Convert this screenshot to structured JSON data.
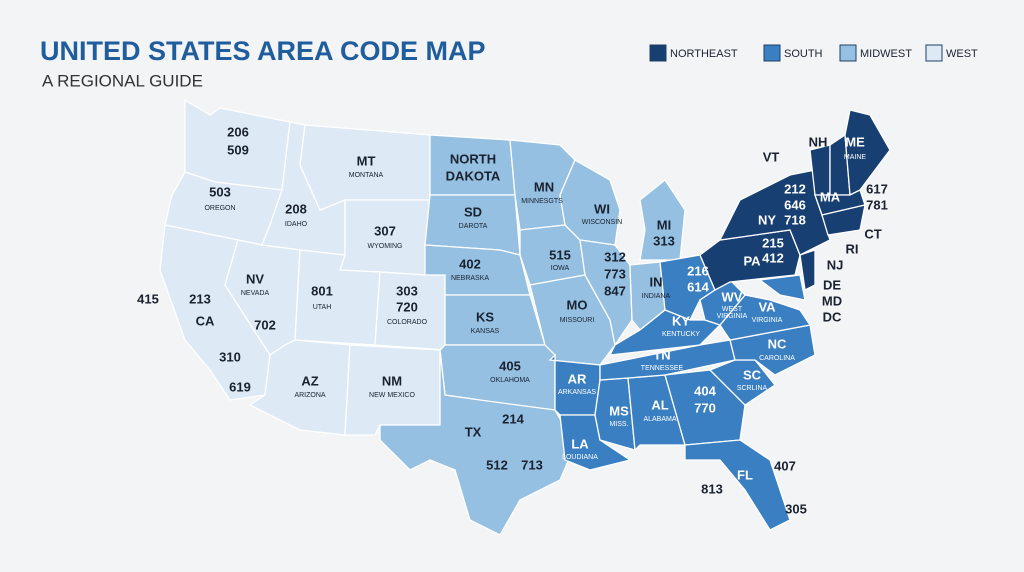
{
  "header": {
    "title": "UNITED STATES AREA CODE MAP",
    "subtitle": "A REGIONAL GUIDE"
  },
  "legend": [
    {
      "name": "NORTHEAST",
      "color": "#173f72"
    },
    {
      "name": "SOUTH",
      "color": "#3a7fc1"
    },
    {
      "name": "MIDWEST",
      "color": "#95c0e2"
    },
    {
      "name": "WEST",
      "color": "#dde9f5"
    }
  ],
  "states": [
    {
      "region": "WEST",
      "labels": [
        "206",
        "509"
      ]
    },
    {
      "region": "WEST",
      "labels": [
        "503",
        "OREGON"
      ]
    },
    {
      "region": "WEST",
      "labels": [
        "208",
        "IDAHO"
      ]
    },
    {
      "region": "WEST",
      "labels": [
        "MT",
        "MONTANA"
      ]
    },
    {
      "region": "WEST",
      "labels": [
        "307",
        "WYOMING"
      ]
    },
    {
      "region": "WEST",
      "labels": [
        "213",
        "CA",
        "310",
        "415",
        "619"
      ]
    },
    {
      "region": "WEST",
      "labels": [
        "NV",
        "NEVADA",
        "702"
      ]
    },
    {
      "region": "WEST",
      "labels": [
        "801",
        "UTAH"
      ]
    },
    {
      "region": "WEST",
      "labels": [
        "303",
        "720",
        "COLORADO"
      ]
    },
    {
      "region": "WEST",
      "labels": [
        "AZ",
        "ARIZONA"
      ]
    },
    {
      "region": "WEST",
      "labels": [
        "NM",
        "NEW MEXICO"
      ]
    },
    {
      "region": "MIDWEST",
      "labels": [
        "NORTH",
        "DAKOTA"
      ]
    },
    {
      "region": "MIDWEST",
      "labels": [
        "SD",
        "DAROTA"
      ]
    },
    {
      "region": "MIDWEST",
      "labels": [
        "402",
        "NEBRASKA"
      ]
    },
    {
      "region": "MIDWEST",
      "labels": [
        "KS",
        "KANSAS"
      ]
    },
    {
      "region": "MIDWEST",
      "labels": [
        "MN",
        "MINNESGTS"
      ]
    },
    {
      "region": "MIDWEST",
      "labels": [
        "515",
        "IOWA"
      ]
    },
    {
      "region": "MIDWEST",
      "labels": [
        "MO",
        "MISSOURI"
      ]
    },
    {
      "region": "MIDWEST",
      "labels": [
        "WI",
        "WISCONSIN"
      ]
    },
    {
      "region": "MIDWEST",
      "labels": [
        "312",
        "773",
        "847"
      ]
    },
    {
      "region": "MIDWEST",
      "labels": [
        "MI",
        "313"
      ]
    },
    {
      "region": "MIDWEST",
      "labels": [
        "IN",
        "INDIANA"
      ]
    },
    {
      "region": "SOUTH",
      "labels": [
        "216",
        "614"
      ]
    },
    {
      "region": "MIDWEST",
      "labels": [
        "405",
        "OKLAHOMA"
      ]
    },
    {
      "region": "MIDWEST",
      "labels": [
        "TX",
        "214",
        "512",
        "713"
      ]
    },
    {
      "region": "SOUTH",
      "labels": [
        "AR",
        "ARKANSAS"
      ]
    },
    {
      "region": "SOUTH",
      "labels": [
        "LA",
        "LOUDIANA"
      ]
    },
    {
      "region": "SOUTH",
      "labels": [
        "MS",
        "MISS."
      ]
    },
    {
      "region": "SOUTH",
      "labels": [
        "AL",
        "ALABAMA"
      ]
    },
    {
      "region": "SOUTH",
      "labels": [
        "TN",
        "TENNESSEE"
      ]
    },
    {
      "region": "SOUTH",
      "labels": [
        "KY",
        "KENTUCKY"
      ]
    },
    {
      "region": "SOUTH",
      "labels": [
        "404",
        "770"
      ]
    },
    {
      "region": "SOUTH",
      "labels": [
        "FL",
        "407",
        "813",
        "305"
      ]
    },
    {
      "region": "SOUTH",
      "labels": [
        "SC",
        "SCRLINA"
      ]
    },
    {
      "region": "SOUTH",
      "labels": [
        "NC",
        "CAROLINA"
      ]
    },
    {
      "region": "SOUTH",
      "labels": [
        "VA",
        "VIRGINIA"
      ]
    },
    {
      "region": "SOUTH",
      "labels": [
        "WV",
        "WEST",
        "VIRGINIA"
      ]
    },
    {
      "region": "SOUTH",
      "labels": [
        "DE",
        "MD",
        "DC"
      ]
    },
    {
      "region": "NORTHEAST",
      "labels": [
        "215",
        "412",
        "PA"
      ]
    },
    {
      "region": "NORTHEAST",
      "labels": [
        "NJ"
      ]
    },
    {
      "region": "NORTHEAST",
      "labels": [
        "212",
        "646",
        "NY",
        "718"
      ]
    },
    {
      "region": "NORTHEAST",
      "labels": [
        "VT"
      ]
    },
    {
      "region": "NORTHEAST",
      "labels": [
        "NH"
      ]
    },
    {
      "region": "NORTHEAST",
      "labels": [
        "ME",
        "MAINE"
      ]
    },
    {
      "region": "NORTHEAST",
      "labels": [
        "MA",
        "617",
        "781"
      ]
    },
    {
      "region": "NORTHEAST",
      "labels": [
        "RI",
        "CT"
      ]
    }
  ]
}
